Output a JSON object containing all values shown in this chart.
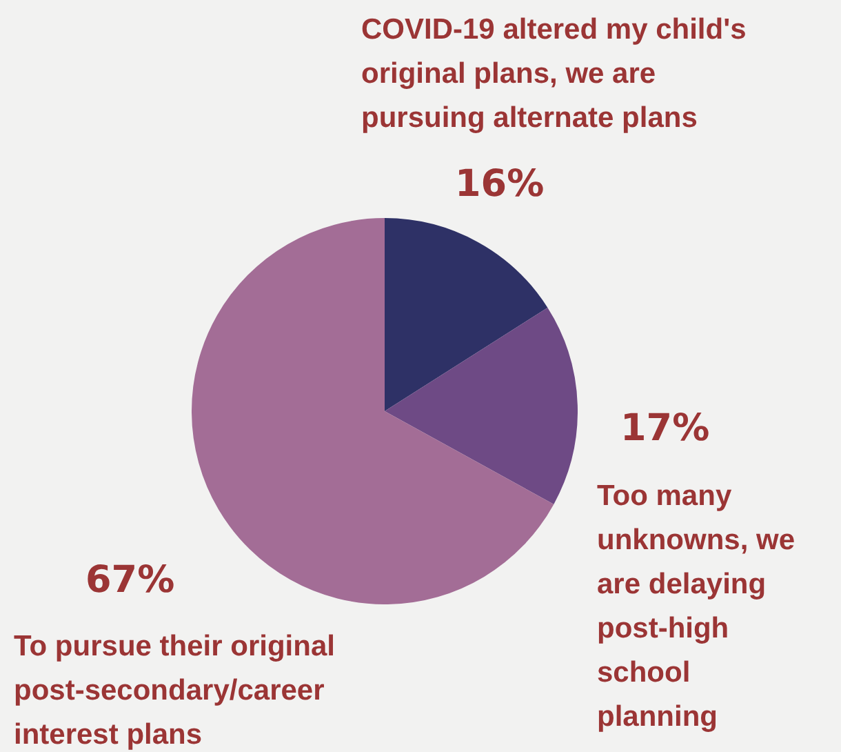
{
  "chart_data": {
    "type": "pie",
    "categories": [
      "COVID-19 altered my child's original plans, we are pursuing alternate plans",
      "Too many unknowns, we are delaying post-high school planning",
      "To pursue their original post-secondary/career interest plans"
    ],
    "values": [
      16,
      17,
      67
    ],
    "colors": [
      "#2e3166",
      "#6e4a85",
      "#a36d96"
    ],
    "value_labels": [
      "16%",
      "17%",
      "67%"
    ],
    "legend": false
  }
}
